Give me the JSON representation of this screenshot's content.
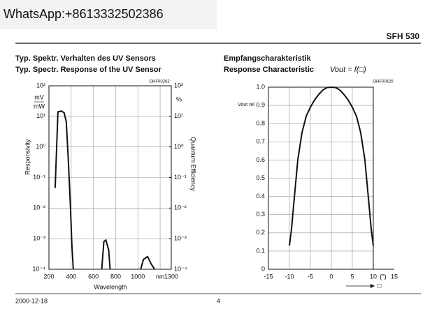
{
  "header": {
    "contact": "WhatsApp:+8613332502386",
    "part": "SFH 530"
  },
  "footer": {
    "date": "2000-12-18",
    "page": "4"
  },
  "chart_data": [
    {
      "type": "line",
      "title": "Typ. Spektr. Verhalten des UV Sensors",
      "subtitle": "Typ. Spectr. Response of the UV Sensor",
      "code": "OHF00262",
      "xlabel": "Wavelength",
      "ylabel": "Responsivity",
      "yunit": [
        "mV",
        "mW"
      ],
      "y2label": "Quantum Efficiency",
      "y2unit": "%",
      "log_y": true,
      "grid": true,
      "xlim": [
        200,
        1300
      ],
      "xticks": [
        200,
        400,
        600,
        800,
        1000,
        {
          "value": 1200,
          "label": "nm"
        },
        1300
      ],
      "ylim": [
        0.0001,
        100
      ],
      "yticks": [
        {
          "value": 0.0001,
          "label": "10⁻⁴"
        },
        {
          "value": 0.001,
          "label": "10⁻³"
        },
        {
          "value": 0.01,
          "label": "10⁻²"
        },
        {
          "value": 0.1,
          "label": "10⁻¹"
        },
        {
          "value": 1,
          "label": "10⁰"
        },
        {
          "value": 10,
          "label": "10¹"
        },
        {
          "value": 100,
          "label": "10²"
        }
      ],
      "y2lim": [
        0.0001,
        100
      ],
      "y2ticks": [
        {
          "value": 0.0001,
          "label": "10⁻⁴"
        },
        {
          "value": 0.001,
          "label": "10⁻³"
        },
        {
          "value": 0.01,
          "label": "10⁻²"
        },
        {
          "value": 0.1,
          "label": "10⁻¹"
        },
        {
          "value": 1,
          "label": "10⁰"
        },
        {
          "value": 10,
          "label": "10¹"
        },
        {
          "value": 100,
          "label": "10²"
        }
      ],
      "series": [
        {
          "color": "#111111",
          "x": [
            256,
            281,
            312,
            337,
            356,
            375,
            394,
            406,
            419
          ],
          "values": [
            0.046,
            14,
            15,
            13,
            6.6,
            0.33,
            0.01,
            0.00066,
            0.0001
          ]
        },
        {
          "color": "#111111",
          "x": [
            675,
            694,
            712,
            737,
            750
          ],
          "values": [
            0.0001,
            0.0008,
            0.0009,
            0.00043,
            0.0001
          ]
        },
        {
          "color": "#111111",
          "x": [
            1025,
            1050,
            1087,
            1119,
            1150
          ],
          "values": [
            0.0001,
            0.00021,
            0.00026,
            0.00015,
            0.0001
          ]
        }
      ]
    },
    {
      "type": "line",
      "title": "Empfangscharakteristik",
      "subtitle": "Response Characteristic",
      "formula": "Vout = f(□)",
      "code": "OHF00425",
      "ylabel": "Vout rel",
      "xunit": "(°)",
      "xarrow": "□",
      "grid": true,
      "xlim": [
        -15,
        15
      ],
      "xticks": [
        -15,
        -10,
        -5,
        0,
        5,
        10,
        15
      ],
      "ylim": [
        0,
        1
      ],
      "yticks": [
        0,
        0.1,
        0.2,
        0.3,
        0.4,
        0.5,
        0.6,
        0.7,
        0.8,
        0.9,
        {
          "value": 1,
          "label": "1.0"
        }
      ],
      "series": [
        {
          "color": "#111111",
          "x": [
            -10,
            -9.5,
            -9,
            -8,
            -7,
            -6,
            -5,
            -4,
            -3,
            -2,
            -1,
            0,
            1,
            2,
            3,
            4,
            5,
            6,
            7,
            8,
            9,
            9.5,
            10
          ],
          "values": [
            0.13,
            0.22,
            0.35,
            0.6,
            0.75,
            0.84,
            0.89,
            0.93,
            0.96,
            0.985,
            0.998,
            1.0,
            0.998,
            0.985,
            0.96,
            0.93,
            0.89,
            0.84,
            0.75,
            0.6,
            0.35,
            0.22,
            0.13
          ]
        }
      ]
    }
  ]
}
